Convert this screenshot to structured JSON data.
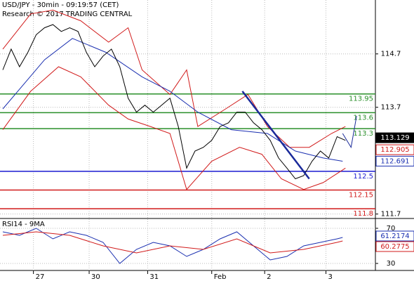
{
  "chart_data": [
    {
      "type": "line",
      "title": "USD/JPY - 30min - 09:19:57 (CET)",
      "subtitle": "Research © 2017 TRADING CENTRAL",
      "xlim": [
        -1,
        133.75
      ],
      "xticks": [
        {
          "value": 11,
          "label": "27"
        },
        {
          "value": 31,
          "label": "30"
        },
        {
          "value": 52,
          "label": "31"
        },
        {
          "value": 75,
          "label": "Feb"
        },
        {
          "value": 94,
          "label": "2"
        },
        {
          "value": 116,
          "label": "3"
        }
      ],
      "ylim": [
        111.63,
        115.71
      ],
      "yticks": [
        114.7,
        113.7,
        111.7
      ],
      "grid": true,
      "series": [
        {
          "color": "#d11a1a",
          "x": [
            0,
            10,
            18,
            28,
            38,
            45,
            50,
            60,
            66,
            70,
            80,
            88,
            95,
            103,
            110,
            118,
            123
          ],
          "values": [
            114.79,
            115.45,
            115.52,
            115.32,
            114.92,
            115.19,
            114.4,
            113.94,
            114.4,
            113.34,
            113.67,
            113.94,
            113.34,
            112.95,
            112.95,
            113.21,
            113.34
          ]
        },
        {
          "color": "#d11a1a",
          "x": [
            0,
            10,
            20,
            28,
            38,
            45,
            53,
            60,
            66,
            75,
            85,
            93,
            100,
            108,
            115,
            123
          ],
          "values": [
            113.28,
            114.0,
            114.46,
            114.27,
            113.74,
            113.48,
            113.34,
            113.21,
            112.16,
            112.69,
            112.95,
            112.82,
            112.36,
            112.16,
            112.29,
            112.56
          ]
        },
        {
          "color": "#1a2fb0",
          "x": [
            0,
            15,
            25,
            37,
            50,
            60,
            70,
            82,
            95,
            105,
            115,
            122
          ],
          "values": [
            113.67,
            114.59,
            114.99,
            114.73,
            114.27,
            114.0,
            113.61,
            113.28,
            113.21,
            112.88,
            112.75,
            112.69
          ]
        },
        {
          "color": "#000000",
          "x": [
            0,
            3,
            6,
            9,
            12,
            15,
            18,
            21,
            24,
            27,
            30,
            33,
            36,
            39,
            42,
            45,
            48,
            51,
            54,
            57,
            60,
            63,
            66,
            69,
            72,
            75,
            78,
            81,
            84,
            87,
            90,
            93,
            96,
            99,
            102,
            105,
            108,
            111,
            114,
            117,
            120,
            123
          ],
          "values": [
            114.4,
            114.79,
            114.46,
            114.73,
            115.06,
            115.19,
            115.25,
            115.12,
            115.19,
            115.12,
            114.73,
            114.46,
            114.66,
            114.79,
            114.46,
            113.87,
            113.61,
            113.74,
            113.61,
            113.74,
            113.87,
            113.34,
            112.56,
            112.88,
            112.95,
            113.08,
            113.34,
            113.41,
            113.61,
            113.61,
            113.41,
            113.28,
            113.08,
            112.75,
            112.56,
            112.36,
            112.42,
            112.69,
            112.88,
            112.75,
            113.15,
            113.08
          ]
        },
        {
          "color": "#1a2a9a",
          "x": [
            86,
            110
          ],
          "values": [
            114.0,
            112.36
          ]
        },
        {
          "color": "#1a2a9a",
          "x": [
            122,
            125,
            127
          ],
          "values": [
            113.21,
            112.95,
            113.54
          ]
        }
      ],
      "levels": [
        {
          "value": 113.95,
          "color": "#2a8f2a"
        },
        {
          "value": 113.6,
          "color": "#2a8f2a"
        },
        {
          "value": 113.3,
          "color": "#2a8f2a"
        },
        {
          "value": 112.5,
          "color": "#1a1ad0"
        },
        {
          "value": 112.15,
          "color": "#d11a1a"
        },
        {
          "value": 111.8,
          "color": "#d11a1a"
        }
      ],
      "price_tags": [
        {
          "value": 113.129,
          "color": "#000000"
        },
        {
          "value": 112.905,
          "color": "#d11a1a"
        },
        {
          "value": 112.691,
          "color": "#1a2fb0"
        }
      ]
    },
    {
      "type": "line",
      "title": "RSI14 - 9MA",
      "xlim": [
        -1,
        133.75
      ],
      "ylim": [
        22,
        80.4
      ],
      "yticks": [
        70,
        30
      ],
      "series": [
        {
          "color": "#1a2fb0",
          "x": [
            0,
            6,
            12,
            18,
            24,
            30,
            36,
            42,
            48,
            54,
            60,
            66,
            72,
            78,
            84,
            90,
            96,
            102,
            108,
            114,
            120,
            122
          ],
          "values": [
            66,
            62,
            70,
            58,
            66,
            62,
            54,
            30,
            46,
            54,
            50,
            38,
            46,
            58,
            66,
            50,
            34,
            38,
            50,
            54,
            58,
            59.6
          ]
        },
        {
          "color": "#d11a1a",
          "x": [
            0,
            12,
            24,
            36,
            48,
            60,
            72,
            84,
            96,
            108,
            120,
            122
          ],
          "values": [
            62,
            66,
            62,
            50,
            42,
            50,
            46,
            58,
            42,
            46,
            54,
            55.6
          ]
        }
      ],
      "price_tags": [
        {
          "value": 61.2174,
          "color": "#1a2fb0"
        },
        {
          "value": 60.2775,
          "color": "#d11a1a"
        }
      ]
    }
  ]
}
